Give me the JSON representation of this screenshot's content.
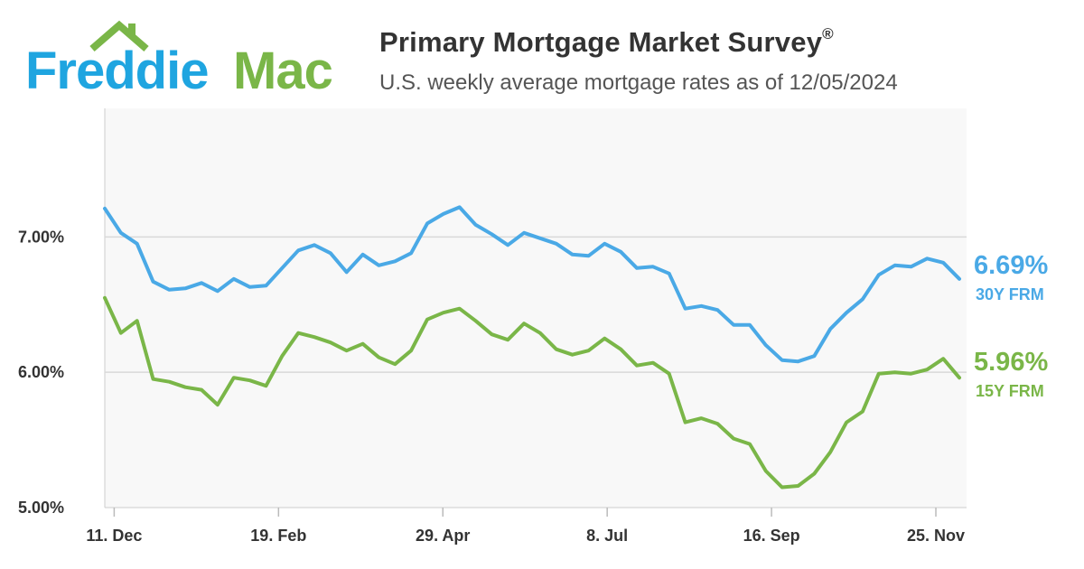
{
  "brand": {
    "name_part1": "Freddie",
    "name_part2": "Mac",
    "color_blue": "#1fa5e0",
    "color_green": "#7ab648",
    "icon": "house-roof-icon"
  },
  "header": {
    "title": "Primary Mortgage Market Survey",
    "title_mark": "®",
    "subtitle": "U.S. weekly average mortgage rates as of 12/05/2024"
  },
  "chart_data": {
    "type": "line",
    "title": "Primary Mortgage Market Survey®",
    "subtitle": "U.S. weekly average mortgage rates as of 12/05/2024",
    "x_start": "2023-12-07",
    "x_end": "2024-12-05",
    "x_tick_labels": [
      "11. Dec",
      "19. Feb",
      "29. Apr",
      "8. Jul",
      "16. Sep",
      "25. Nov"
    ],
    "x_tick_dates": [
      "2023-12-11",
      "2024-02-19",
      "2024-04-29",
      "2024-07-08",
      "2024-09-16",
      "2024-11-25"
    ],
    "y_tick_labels": [
      "5.00%",
      "6.00%",
      "7.00%"
    ],
    "y_ticks": [
      5.0,
      6.0,
      7.0
    ],
    "ylim": [
      5.0,
      7.95
    ],
    "grid": true,
    "legend": "right end labels",
    "series": [
      {
        "name": "30Y FRM",
        "color": "#4aa9e6",
        "end_label": "6.69%",
        "values": [
          7.21,
          7.03,
          6.95,
          6.67,
          6.61,
          6.62,
          6.66,
          6.6,
          6.69,
          6.63,
          6.64,
          6.77,
          6.9,
          6.94,
          6.88,
          6.74,
          6.87,
          6.79,
          6.82,
          6.88,
          7.1,
          7.17,
          7.22,
          7.09,
          7.02,
          6.94,
          7.03,
          6.99,
          6.95,
          6.87,
          6.86,
          6.95,
          6.89,
          6.77,
          6.78,
          6.73,
          6.47,
          6.49,
          6.46,
          6.35,
          6.35,
          6.2,
          6.09,
          6.08,
          6.12,
          6.32,
          6.44,
          6.54,
          6.72,
          6.79,
          6.78,
          6.84,
          6.81,
          6.69
        ]
      },
      {
        "name": "15Y FRM",
        "color": "#7ab648",
        "end_label": "5.96%",
        "values": [
          6.55,
          6.29,
          6.38,
          5.95,
          5.93,
          5.89,
          5.87,
          5.76,
          5.96,
          5.94,
          5.9,
          6.12,
          6.29,
          6.26,
          6.22,
          6.16,
          6.21,
          6.11,
          6.06,
          6.16,
          6.39,
          6.44,
          6.47,
          6.38,
          6.28,
          6.24,
          6.36,
          6.29,
          6.17,
          6.13,
          6.16,
          6.25,
          6.17,
          6.05,
          6.07,
          5.99,
          5.63,
          5.66,
          5.62,
          5.51,
          5.47,
          5.27,
          5.15,
          5.16,
          5.25,
          5.41,
          5.63,
          5.71,
          5.99,
          6.0,
          5.99,
          6.02,
          6.1,
          5.96
        ]
      }
    ]
  }
}
